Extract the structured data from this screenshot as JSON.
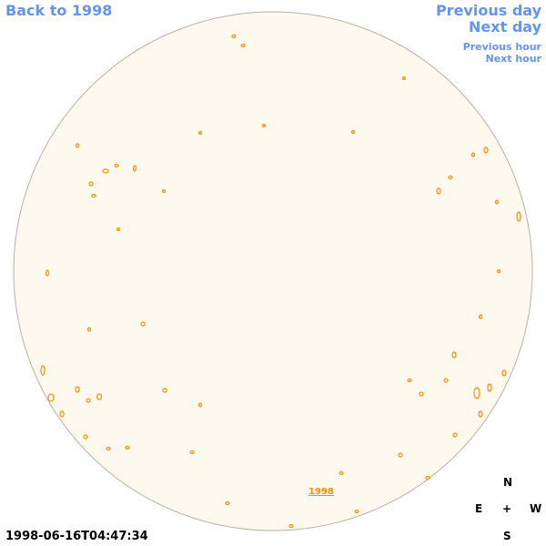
{
  "links": {
    "back": "Back to 1998",
    "previous_day": "Previous day",
    "next_day": "Next day",
    "previous_hour": "Previous hour",
    "next_hour": "Next hour"
  },
  "disk_label": "1998",
  "timestamp": "1998-06-16T04:47:34",
  "compass": {
    "north": "N",
    "east": "E",
    "center": "+",
    "west": "W",
    "south": "S"
  }
}
